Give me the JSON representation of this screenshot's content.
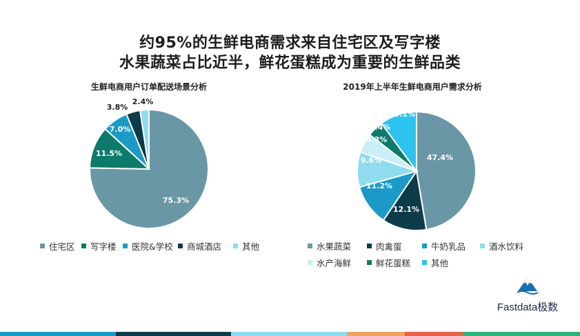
{
  "headline": {
    "line1": "约95%的生鲜电商需求来自住宅区及写字楼",
    "line2": "水果蔬菜占比近半，鲜花蛋糕成为重要的生鲜品类"
  },
  "brand": {
    "name": "Fastdata极数"
  },
  "chart_data": [
    {
      "type": "pie",
      "title": "生鲜电商用户订单配送场景分析",
      "categories": [
        "住宅区",
        "写字楼",
        "医院&学校",
        "商城酒店",
        "其他"
      ],
      "values": [
        75.3,
        11.5,
        7.0,
        3.8,
        2.4
      ],
      "data_labels": [
        "75.3%",
        "11.5%",
        "7.0%",
        "3.8%",
        "2.4%"
      ],
      "colors": [
        "#6a97a5",
        "#0e7a6b",
        "#1b9ac7",
        "#0d3b4a",
        "#8fdcef"
      ],
      "legend_position": "bottom"
    },
    {
      "type": "pie",
      "title": "2019年上半年生鲜电商用户需求分析",
      "categories": [
        "水果蔬菜",
        "肉禽蛋",
        "牛奶乳品",
        "酒水饮料",
        "水产海鲜",
        "鲜花蛋糕",
        "其他"
      ],
      "values": [
        47.4,
        12.1,
        11.2,
        9.6,
        5.3,
        4.4,
        10.1
      ],
      "data_labels": [
        "47.4%",
        "12.1%",
        "11.2%",
        "9.6%",
        "5.3%",
        "4.4%",
        "10.1%"
      ],
      "colors": [
        "#6a97a5",
        "#0d3b4a",
        "#1b9ac7",
        "#8fdcef",
        "#c9eef7",
        "#0e7a6b",
        "#2cc3ef"
      ],
      "legend_position": "bottom"
    }
  ],
  "bottom_bar_colors": [
    "#1b9ac7",
    "#0d3b4a",
    "#8fdcef",
    "#f0a35e",
    "#e4614b",
    "#2db37a"
  ]
}
